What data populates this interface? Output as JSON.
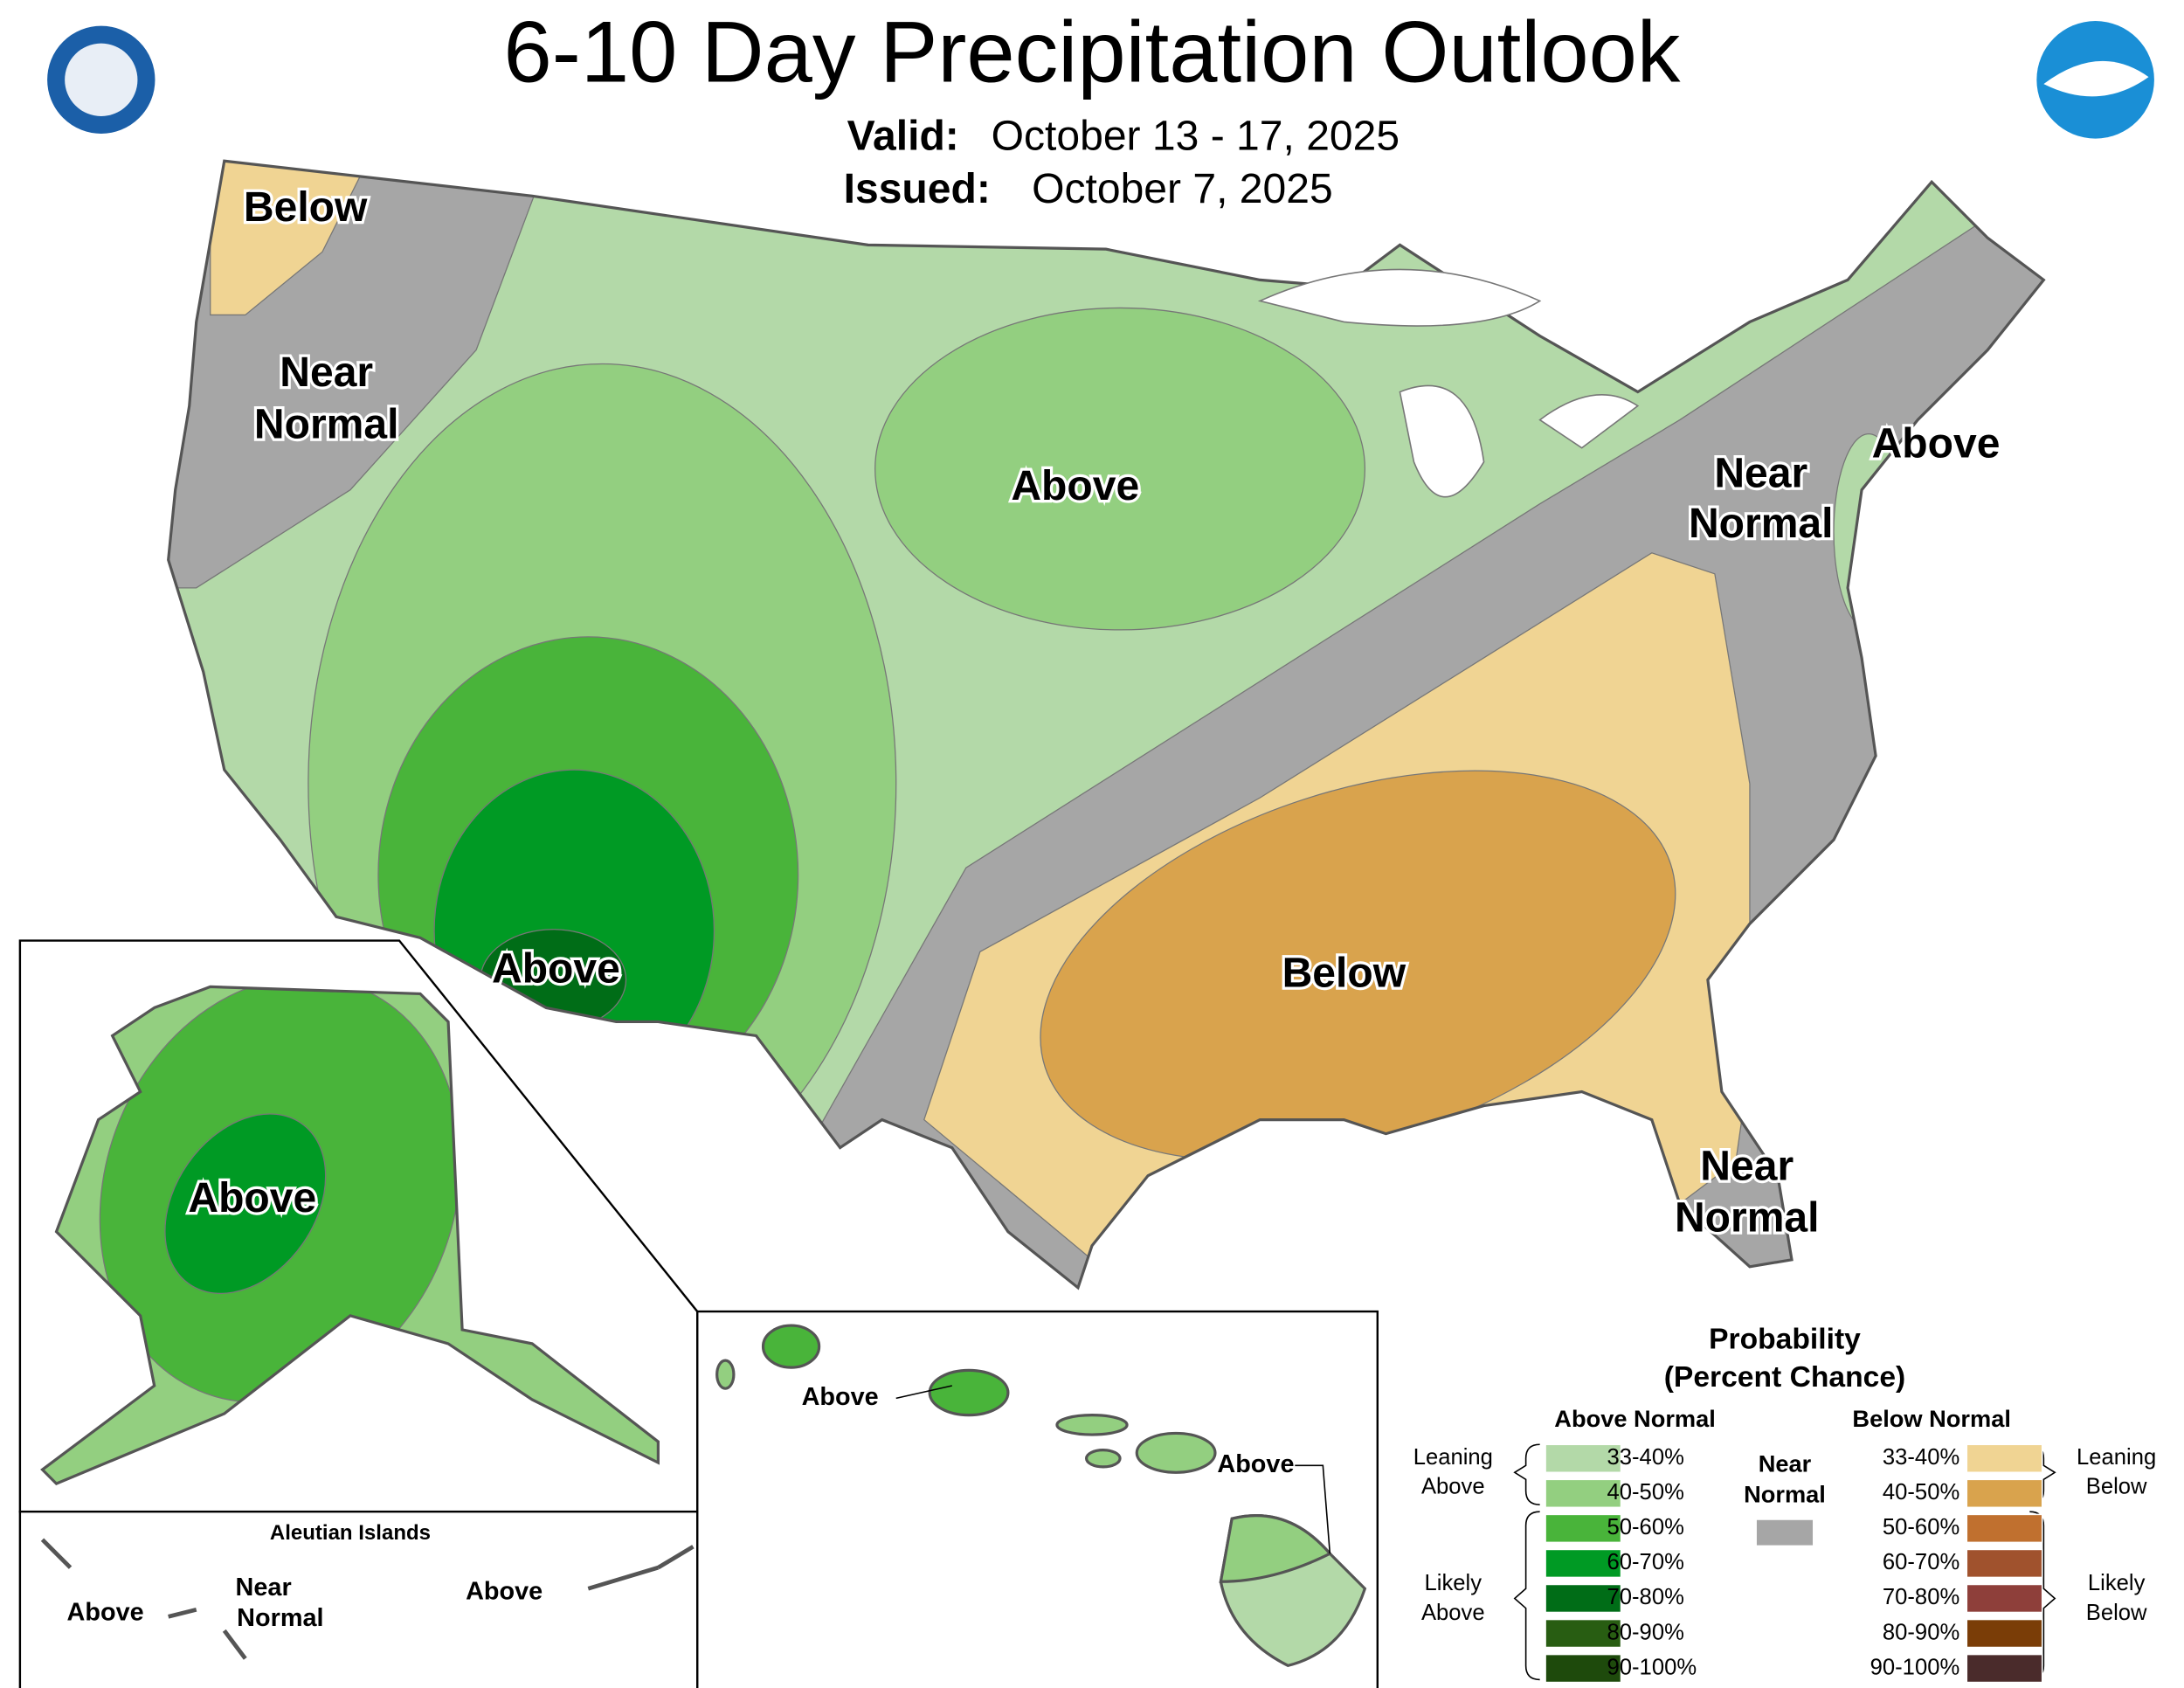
{
  "header": {
    "title": "6-10 Day Precipitation Outlook",
    "valid_label": "Valid:",
    "valid_date": "October 13 - 17, 2025",
    "issued_label": "Issued:",
    "issued_date": "October 7, 2025"
  },
  "conus_labels": [
    [
      "Below"
    ],
    [
      "Near",
      "Normal"
    ],
    [
      "Above"
    ],
    [
      "Near",
      "Normal"
    ],
    [
      "Above"
    ],
    [
      "Above"
    ],
    [
      "Below"
    ],
    [
      "Near",
      "Normal"
    ]
  ],
  "alaska_labels": [
    [
      "Above"
    ]
  ],
  "aleutian": {
    "title": "Aleutian Islands",
    "labels": [
      [
        "Above"
      ],
      [
        "Near",
        "Normal"
      ],
      [
        "Above"
      ]
    ]
  },
  "hawaii_labels": [
    [
      "Above"
    ],
    [
      "Above"
    ]
  ],
  "legend": {
    "title": [
      "Probability",
      "(Percent Chance)"
    ],
    "above_header": "Above Normal",
    "below_header": "Below Normal",
    "near": [
      "Near",
      "Normal"
    ],
    "near_color": "#a6a6a6",
    "above": [
      {
        "label": "33-40%",
        "color": "#b3d9a8"
      },
      {
        "label": "40-50%",
        "color": "#93cf80"
      },
      {
        "label": "50-60%",
        "color": "#49b43a"
      },
      {
        "label": "60-70%",
        "color": "#009a24"
      },
      {
        "label": "70-80%",
        "color": "#006d17"
      },
      {
        "label": "80-90%",
        "color": "#285d12"
      },
      {
        "label": "90-100%",
        "color": "#1e4a0c"
      }
    ],
    "below": [
      {
        "label": "33-40%",
        "color": "#f0d493"
      },
      {
        "label": "40-50%",
        "color": "#d9a34d"
      },
      {
        "label": "50-60%",
        "color": "#c0702f"
      },
      {
        "label": "60-70%",
        "color": "#a0522d"
      },
      {
        "label": "70-80%",
        "color": "#8e3f3a"
      },
      {
        "label": "80-90%",
        "color": "#7a3d07"
      },
      {
        "label": "90-100%",
        "color": "#4a2b2b"
      }
    ],
    "leaning_above": [
      "Leaning",
      "Above"
    ],
    "likely_above": [
      "Likely",
      "Above"
    ],
    "leaning_below": [
      "Leaning",
      "Below"
    ],
    "likely_below": [
      "Likely",
      "Below"
    ]
  }
}
